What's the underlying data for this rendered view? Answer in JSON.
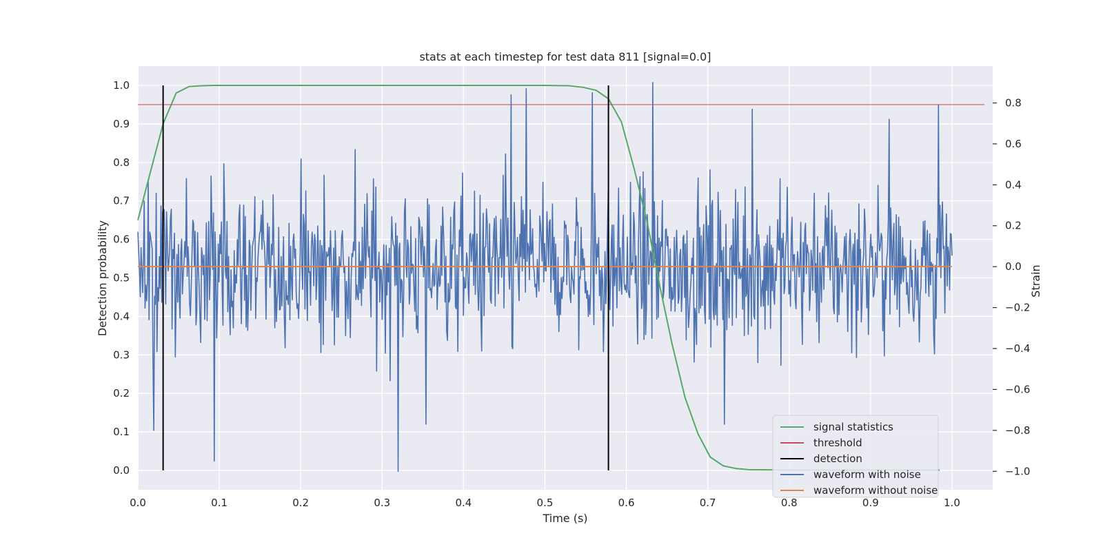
{
  "chart_data": {
    "type": "line",
    "title": "stats at each timestep for test data 811 [signal=0.0]",
    "xlabel": "Time (s)",
    "ylabel_left": "Detection probability",
    "ylabel_right": "Strain",
    "xlim": [
      0.0,
      1.05
    ],
    "ylim_left": [
      -0.05,
      1.05
    ],
    "ylim_right": [
      -1.09,
      0.98
    ],
    "x_ticks": [
      0.0,
      0.1,
      0.2,
      0.3,
      0.4,
      0.5,
      0.6,
      0.7,
      0.8,
      0.9,
      1.0
    ],
    "x_tick_labels": [
      "0.0",
      "0.1",
      "0.2",
      "0.3",
      "0.4",
      "0.5",
      "0.6",
      "0.7",
      "0.8",
      "0.9",
      "1.0"
    ],
    "y_left_ticks": [
      0.0,
      0.1,
      0.2,
      0.3,
      0.4,
      0.5,
      0.6,
      0.7,
      0.8,
      0.9,
      1.0
    ],
    "y_left_tick_labels": [
      "0.0",
      "0.1",
      "0.2",
      "0.3",
      "0.4",
      "0.5",
      "0.6",
      "0.7",
      "0.8",
      "0.9",
      "1.0"
    ],
    "y_right_ticks": [
      -1.0,
      -0.8,
      -0.6,
      -0.4,
      -0.2,
      0.0,
      0.2,
      0.4,
      0.6,
      0.8
    ],
    "y_right_tick_labels": [
      "−1.0",
      "−0.8",
      "−0.6",
      "−0.4",
      "−0.2",
      "0.0",
      "0.2",
      "0.4",
      "0.6",
      "0.8"
    ],
    "grid": true,
    "background": "#eaeaf2",
    "legend_position": "lower-right",
    "series": [
      {
        "name": "signal statistics",
        "axis": "left",
        "color": "#55a868",
        "x": [
          0.0,
          0.016,
          0.031,
          0.047,
          0.063,
          0.078,
          0.094,
          0.11,
          0.2,
          0.3,
          0.4,
          0.5,
          0.53,
          0.547,
          0.563,
          0.578,
          0.594,
          0.61,
          0.625,
          0.641,
          0.656,
          0.672,
          0.688,
          0.703,
          0.719,
          0.735,
          0.75,
          0.8,
          0.9,
          0.985
        ],
        "y": [
          0.65,
          0.78,
          0.9,
          0.98,
          0.997,
          0.999,
          1.0,
          1.0,
          1.0,
          1.0,
          1.0,
          1.0,
          0.999,
          0.995,
          0.987,
          0.965,
          0.905,
          0.78,
          0.65,
          0.48,
          0.33,
          0.19,
          0.095,
          0.035,
          0.012,
          0.005,
          0.002,
          0.001,
          0.001,
          0.001
        ]
      },
      {
        "name": "threshold",
        "axis": "left",
        "color": "#c44e52",
        "x": [
          0.0,
          1.04
        ],
        "y": [
          0.95,
          0.95
        ]
      },
      {
        "name": "detection",
        "axis": "left",
        "color": "#000000",
        "x": [
          0.031,
          0.578
        ],
        "y": [
          [
            0.0,
            1.0
          ],
          [
            0.0,
            1.0
          ]
        ]
      },
      {
        "name": "waveform with noise",
        "axis": "right",
        "color": "#4c72b0",
        "x_range": [
          0.0,
          1.0
        ],
        "points": 1024,
        "y_min": -0.99,
        "y_max": 0.91,
        "spikes": [
          {
            "x": 0.0195,
            "y": -0.8
          },
          {
            "x": 0.094,
            "y": -0.95
          },
          {
            "x": 0.32,
            "y": -1.0
          },
          {
            "x": 0.354,
            "y": -0.77
          },
          {
            "x": 0.458,
            "y": 0.84
          },
          {
            "x": 0.477,
            "y": 0.87
          },
          {
            "x": 0.558,
            "y": 0.85
          },
          {
            "x": 0.632,
            "y": 0.9
          },
          {
            "x": 0.983,
            "y": 0.79
          },
          {
            "x": 0.72,
            "y": -0.77
          },
          {
            "x": 0.755,
            "y": 0.77
          },
          {
            "x": 0.923,
            "y": 0.72
          }
        ]
      },
      {
        "name": "waveform without noise",
        "axis": "right",
        "color": "#dd8452",
        "x": [
          0.0,
          1.0
        ],
        "y": [
          0.0,
          0.0
        ]
      }
    ]
  }
}
